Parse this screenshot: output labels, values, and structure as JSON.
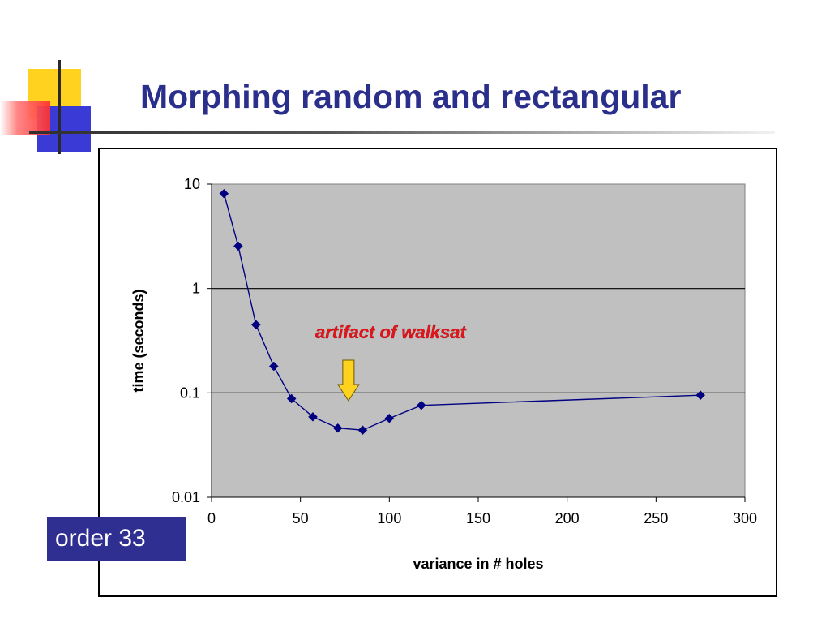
{
  "slide": {
    "title": "Morphing random and rectangular",
    "badge": "order 33"
  },
  "colors": {
    "title": "#2b2f8c",
    "badge_bg": "#2f2f91",
    "plot_bg": "#c0c0c0",
    "series": "#000080",
    "annotation": "#e8141b",
    "arrow_fill": "#ffd21f"
  },
  "chart_data": {
    "type": "scatter",
    "title": "",
    "xlabel": "variance in # holes",
    "ylabel": "time (seconds)",
    "xlim": [
      0,
      300
    ],
    "ylim": [
      0.01,
      10
    ],
    "y_scale": "log",
    "x_ticks": [
      "0",
      "50",
      "100",
      "150",
      "200",
      "250",
      "300"
    ],
    "y_ticks": [
      "0.01",
      "0.1",
      "1",
      "10"
    ],
    "grid": "horizontal major gridlines",
    "legend": "none",
    "series": [
      {
        "style": "line with diamond markers",
        "x": [
          7,
          15,
          25,
          35,
          45,
          57,
          71,
          85,
          100,
          118,
          275
        ],
        "y": [
          8.1,
          2.55,
          0.45,
          0.18,
          0.088,
          0.059,
          0.046,
          0.044,
          0.057,
          0.076,
          0.095
        ]
      }
    ],
    "annotation": {
      "text": "artifact of walksat",
      "points_to_x": 77,
      "marker": "down-arrow"
    }
  }
}
